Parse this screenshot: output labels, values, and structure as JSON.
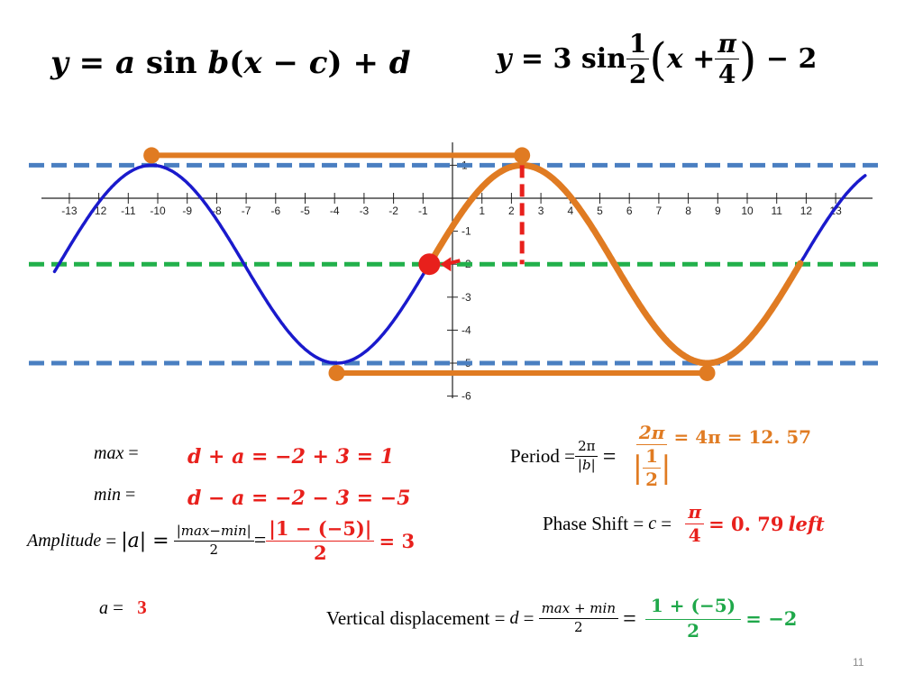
{
  "formulas": {
    "general": {
      "lhs": "y",
      "eq": "=",
      "a": "a",
      "sin": "sin",
      "b": "b",
      "open": "(",
      "x": "x",
      "minus": "−",
      "c": "c",
      "close": ")",
      "plus": "+",
      "d": "d"
    },
    "specific": {
      "lhs": "y",
      "eq": "= 3",
      "sin": "sin",
      "frac_num": "1",
      "frac_den": "2",
      "open": "(",
      "inner": "x +",
      "pi_num": "π",
      "pi_den": "4",
      "close": ")",
      "tail": "− 2"
    }
  },
  "chart_data": {
    "type": "line",
    "x_range": [
      -13.5,
      14
    ],
    "y_range": [
      -6,
      1.5
    ],
    "x_ticks": [
      "-13",
      "-12",
      "-11",
      "-10",
      "-9",
      "-8",
      "-7",
      "-6",
      "-5",
      "-4",
      "-3",
      "-2",
      "-1",
      "1",
      "2",
      "3",
      "4",
      "5",
      "6",
      "7",
      "8",
      "9",
      "10",
      "11",
      "12",
      "13"
    ],
    "y_ticks": [
      "1",
      "-1",
      "-2",
      "-3",
      "-4",
      "-5",
      "-6"
    ],
    "curves": [
      {
        "color": "#1a1acc",
        "amplitude": 3,
        "b": 0.5,
        "c": -0.785,
        "d": -2,
        "x_from": -13.5,
        "x_to": 14
      },
      {
        "color": "#e07b22",
        "amplitude": 3,
        "b": 0.5,
        "c": -0.785,
        "d": -2,
        "x_from": -0.8,
        "x_to": 11.8
      }
    ],
    "horizontal_lines": [
      {
        "y": 1,
        "color": "#4a7fc1",
        "style": "dashed"
      },
      {
        "y": -5,
        "color": "#4a7fc1",
        "style": "dashed"
      },
      {
        "y": -2,
        "color": "#22b04b",
        "style": "dashed"
      }
    ],
    "period_segments": [
      {
        "x1": -10.21,
        "x2": 2.36,
        "y": 1.3
      },
      {
        "x1": -3.93,
        "x2": 8.64,
        "y": -5.3
      }
    ],
    "vertical_marker": {
      "x": 2.36,
      "y1": 1,
      "y2": -2,
      "color": "#e8201c"
    },
    "start_point": {
      "x": -0.785,
      "y": -2,
      "color": "#e8201c"
    }
  },
  "calc": {
    "max_label": "max",
    "max_eq": "=",
    "max_value": "d + a = −2 + 3 = 1",
    "min_label": "min",
    "min_eq": "=",
    "min_value": "d − a = −2 − 3 = −5",
    "amp_label": "Amplitude",
    "amp_eq": "=",
    "amp_abs": "|a| =",
    "amp_frac_num": "|max−min|",
    "amp_frac_den": "2",
    "amp_eq2": "=",
    "amp_val_num": "|1 − (−5)|",
    "amp_val_den": "2",
    "amp_result": "= 3",
    "a_label": "a",
    "a_eq": "=",
    "a_value": "3",
    "period_label": "Period =",
    "period_frac_num": "2π",
    "period_frac_den": "|b|",
    "period_eq": "=",
    "period_val_num": "2π",
    "period_val_den_num": "1",
    "period_val_den_den": "2",
    "period_result": "= 4π = 12. 57",
    "phase_label": "Phase Shift =",
    "phase_c": "c",
    "phase_eq": "=",
    "phase_num": "π",
    "phase_den": "4",
    "phase_result": "= 0. 79",
    "phase_left": "left",
    "vd_label": "Vertical displacement =",
    "vd_d": "d",
    "vd_eq": "=",
    "vd_frac_num": "max + min",
    "vd_frac_den": "2",
    "vd_eq2": "=",
    "vd_val_num": "1 + (−5)",
    "vd_val_den": "2",
    "vd_result": "= −2"
  },
  "slide_number": "11"
}
